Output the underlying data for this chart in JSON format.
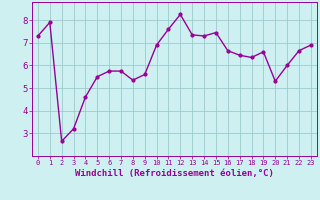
{
  "x": [
    0,
    1,
    2,
    3,
    4,
    5,
    6,
    7,
    8,
    9,
    10,
    11,
    12,
    13,
    14,
    15,
    16,
    17,
    18,
    19,
    20,
    21,
    22,
    23
  ],
  "y": [
    7.3,
    7.9,
    2.65,
    3.2,
    4.6,
    5.5,
    5.75,
    5.75,
    5.35,
    5.6,
    6.9,
    7.6,
    8.25,
    7.35,
    7.3,
    7.45,
    6.65,
    6.45,
    6.35,
    6.6,
    5.3,
    6.0,
    6.65,
    6.9
  ],
  "line_color": "#990099",
  "marker": "o",
  "marker_size": 2.0,
  "linewidth": 1.0,
  "bg_color": "#cff0f0",
  "grid_color": "#99cccc",
  "xlabel": "Windchill (Refroidissement éolien,°C)",
  "xlabel_color": "#990099",
  "xlabel_fontsize": 6.5,
  "ylim": [
    2.0,
    8.8
  ],
  "xlim": [
    -0.5,
    23.5
  ],
  "yticks": [
    3,
    4,
    5,
    6,
    7,
    8
  ],
  "xticks": [
    0,
    1,
    2,
    3,
    4,
    5,
    6,
    7,
    8,
    9,
    10,
    11,
    12,
    13,
    14,
    15,
    16,
    17,
    18,
    19,
    20,
    21,
    22,
    23
  ],
  "tick_color": "#990099",
  "ytick_labelsize": 6.5,
  "xtick_labelsize": 5.0,
  "spine_color": "#990099"
}
